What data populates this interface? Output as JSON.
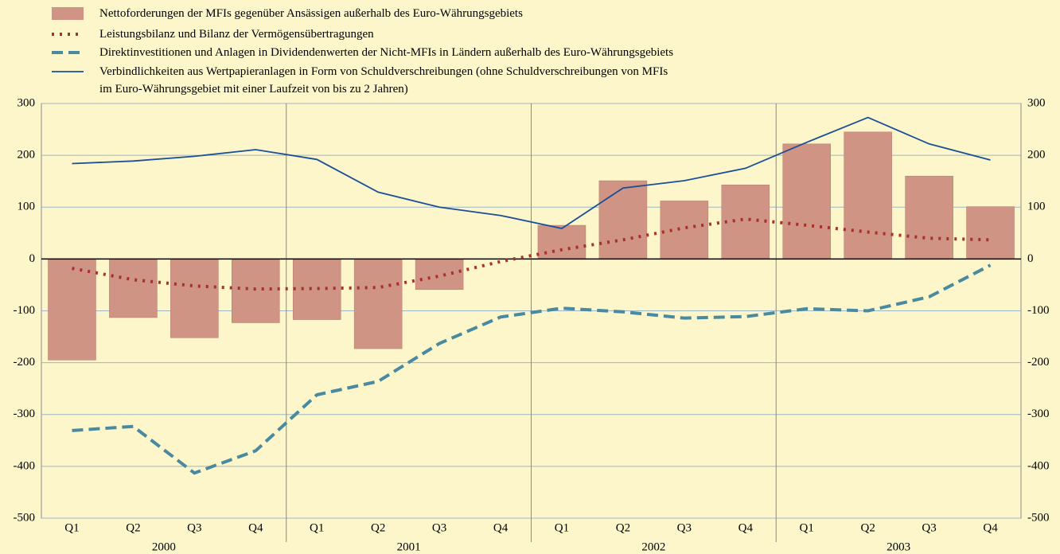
{
  "chart_data": {
    "type": "bar",
    "categories": [
      "Q1",
      "Q2",
      "Q3",
      "Q4",
      "Q1",
      "Q2",
      "Q3",
      "Q4",
      "Q1",
      "Q2",
      "Q3",
      "Q4",
      "Q1",
      "Q2",
      "Q3",
      "Q4"
    ],
    "years": [
      "2000",
      "2001",
      "2002",
      "2003"
    ],
    "ylim": [
      -500,
      300
    ],
    "yticks": [
      300,
      200,
      100,
      0,
      -100,
      -200,
      -300,
      -400,
      -500
    ],
    "grid": true,
    "series": [
      {
        "name": "Nettoforderungen der MFIs gegenüber Ansässigen außerhalb des Euro-Währungsgebiets",
        "type": "bar",
        "color": "#cf9483",
        "values": [
          -195,
          -113,
          -152,
          -123,
          -117,
          -173,
          -59,
          0,
          65,
          151,
          112,
          143,
          222,
          245,
          160,
          101
        ]
      },
      {
        "name": "Leistungsbilanz und Bilanz der Vermögensübertragungen",
        "type": "line",
        "style": "dotted",
        "color": "#a8322b",
        "values": [
          -18,
          -40,
          -52,
          -58,
          -57,
          -55,
          -33,
          -5,
          18,
          37,
          60,
          77,
          65,
          52,
          40,
          37
        ]
      },
      {
        "name": "Direktinvestitionen und Anlagen in Dividendenwerten der Nicht-MFIs in Ländern außerhalb des Euro-Währungsgebiets",
        "type": "line",
        "style": "dashed",
        "color": "#4a8aa0",
        "values": [
          -331,
          -323,
          -413,
          -370,
          -262,
          -236,
          -163,
          -112,
          -95,
          -102,
          -114,
          -111,
          -96,
          -100,
          -73,
          -12
        ]
      },
      {
        "name": "Verbindlichkeiten aus Wertpapieranlagen in Form von Schuldverschreibungen (ohne Schuldverschreibungen von MFIs\nim Euro-Währungsgebiet mit einer Laufzeit von bis zu 2 Jahren)",
        "type": "line",
        "style": "solid",
        "color": "#1b4f98",
        "values": [
          184,
          189,
          198,
          211,
          192,
          129,
          100,
          84,
          59,
          137,
          151,
          175,
          225,
          273,
          222,
          191
        ]
      }
    ]
  }
}
